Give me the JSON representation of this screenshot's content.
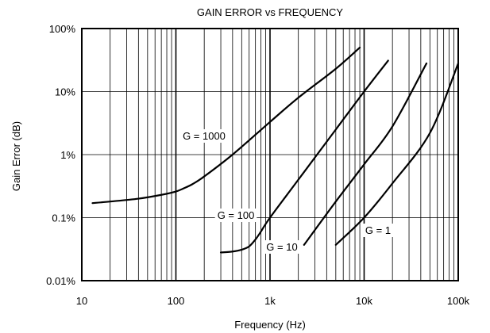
{
  "chart_data": {
    "type": "line",
    "title": "GAIN ERROR vs FREQUENCY",
    "xlabel": "Frequency (Hz)",
    "ylabel": "Gain Error (dB)",
    "x_scale": "log",
    "y_scale": "log",
    "xlim": [
      10,
      100000
    ],
    "ylim": [
      0.01,
      100
    ],
    "x_ticks": [
      10,
      100,
      1000,
      10000,
      100000
    ],
    "x_tick_labels": [
      "10",
      "100",
      "1k",
      "10k",
      "100k"
    ],
    "y_ticks": [
      0.01,
      0.1,
      1,
      10,
      100
    ],
    "y_tick_labels": [
      "0.01%",
      "0.1%",
      "1%",
      "10%",
      "100%"
    ],
    "grid": true,
    "series": [
      {
        "name": "G = 1000",
        "x": [
          13,
          20,
          40,
          70,
          100,
          120,
          150,
          200,
          400,
          1000,
          2000,
          5000,
          9000
        ],
        "y": [
          0.17,
          0.18,
          0.2,
          0.23,
          0.26,
          0.29,
          0.34,
          0.45,
          1.0,
          3.3,
          8.0,
          23,
          50
        ]
      },
      {
        "name": "G = 100",
        "x": [
          300,
          400,
          500,
          600,
          700,
          800,
          1000,
          2000,
          5000,
          10000,
          18000
        ],
        "y": [
          0.028,
          0.029,
          0.031,
          0.035,
          0.045,
          0.06,
          0.1,
          0.4,
          2.5,
          10,
          31
        ]
      },
      {
        "name": "G = 10",
        "x": [
          2300,
          5000,
          10000,
          20000,
          46000
        ],
        "y": [
          0.037,
          0.18,
          0.7,
          2.8,
          28
        ]
      },
      {
        "name": "G = 1",
        "x": [
          5000,
          10000,
          20000,
          50000,
          100000
        ],
        "y": [
          0.037,
          0.1,
          0.35,
          2.2,
          28
        ]
      }
    ],
    "annotations": [
      {
        "text": "G = 1000",
        "series": "G = 1000"
      },
      {
        "text": "G = 100",
        "series": "G = 100"
      },
      {
        "text": "G = 10",
        "series": "G = 10"
      },
      {
        "text": "G = 1",
        "series": "G = 1"
      }
    ]
  }
}
